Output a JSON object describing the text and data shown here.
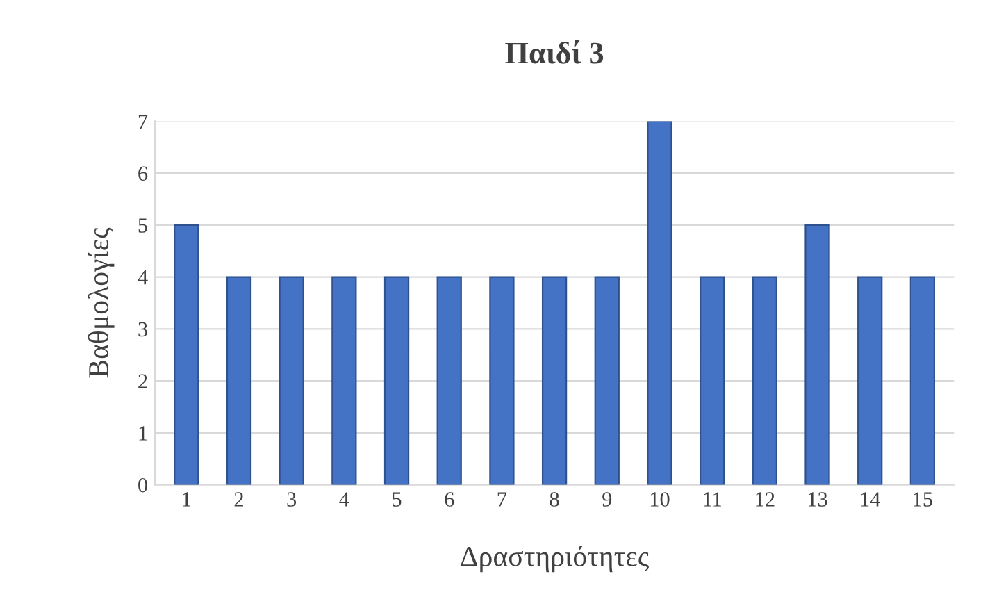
{
  "chart_data": {
    "type": "bar",
    "title": "Παιδί 3",
    "xlabel": "Δραστηριότητες",
    "ylabel": "Βαθμολογίες",
    "categories": [
      "1",
      "2",
      "3",
      "4",
      "5",
      "6",
      "7",
      "8",
      "9",
      "10",
      "11",
      "12",
      "13",
      "14",
      "15"
    ],
    "values": [
      5,
      4,
      4,
      4,
      4,
      4,
      4,
      4,
      4,
      7,
      4,
      4,
      5,
      4,
      4
    ],
    "color": "#4472c4",
    "ylim": [
      0,
      7
    ],
    "yticks": [
      0,
      1,
      2,
      3,
      4,
      5,
      6,
      7
    ],
    "grid": "y",
    "legend": false
  }
}
